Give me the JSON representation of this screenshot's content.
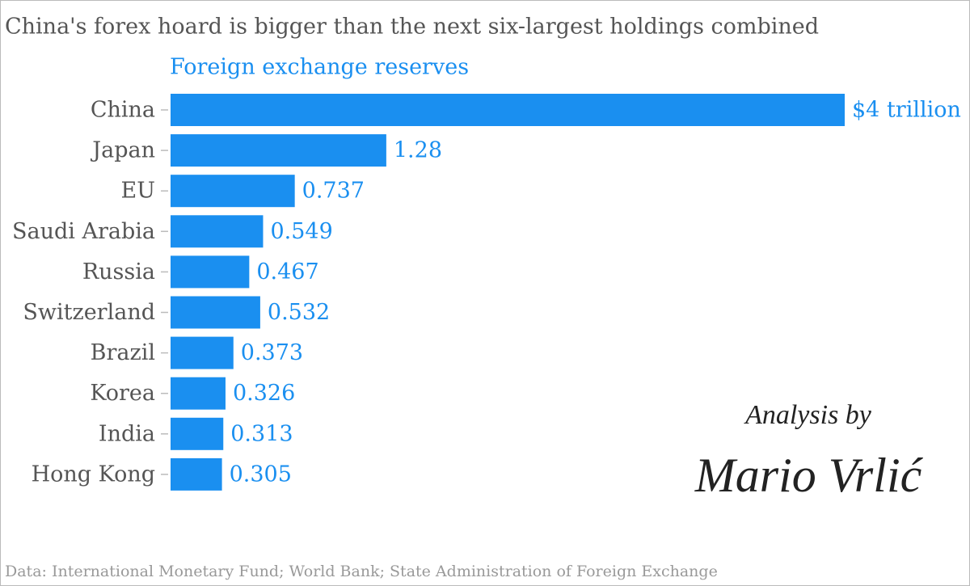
{
  "chart_data": {
    "type": "hbar",
    "title": "China's forex hoard is bigger than the next six-largest holdings combined",
    "subtitle": "Foreign exchange reserves",
    "categories": [
      "China",
      "Japan",
      "EU",
      "Saudi Arabia",
      "Russia",
      "Switzerland",
      "Brazil",
      "Korea",
      "India",
      "Hong Kong"
    ],
    "values": [
      4,
      1.28,
      0.737,
      0.549,
      0.467,
      0.532,
      0.373,
      0.326,
      0.313,
      0.305
    ],
    "value_labels": [
      "$4 trillion",
      "1.28",
      "0.737",
      "0.549",
      "0.467",
      "0.532",
      "0.373",
      "0.326",
      "0.313",
      "0.305"
    ],
    "color": "#1a8ff0",
    "annotations": [
      "Analysis by",
      "Mario Vrlić"
    ],
    "source": "Data: International Monetary Fund; World Bank; State Administration of Foreign Exchange"
  }
}
